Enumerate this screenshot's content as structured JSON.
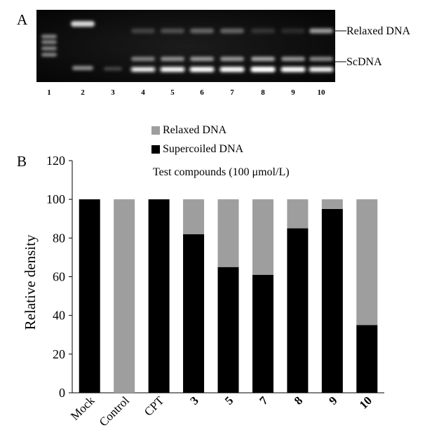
{
  "panel_a": {
    "letter": "A",
    "band_labels": {
      "relaxed": "Relaxed DNA",
      "supercoiled": "ScDNA"
    },
    "lanes": [
      "1",
      "2",
      "3",
      "4",
      "5",
      "6",
      "7",
      "8",
      "9",
      "10"
    ]
  },
  "panel_b": {
    "letter": "B",
    "legend": {
      "relaxed": "Relaxed DNA",
      "supercoiled": "Supercoiled DNA"
    },
    "annotation": "Test compounds (100 μmol/L)"
  },
  "colors": {
    "relaxed": "#9e9e9e",
    "supercoiled": "#000000"
  },
  "chart_data": {
    "type": "bar",
    "stacked": true,
    "categories": [
      "Mock",
      "Control",
      "CPT",
      "3",
      "5",
      "7",
      "8",
      "9",
      "10"
    ],
    "category_bold": [
      false,
      false,
      false,
      true,
      true,
      true,
      true,
      true,
      true
    ],
    "series": [
      {
        "name": "Supercoiled DNA",
        "values": [
          100,
          0,
          100,
          82,
          65,
          61,
          85,
          95,
          35
        ]
      },
      {
        "name": "Relaxed DNA",
        "values": [
          0,
          100,
          0,
          18,
          35,
          39,
          15,
          5,
          65
        ]
      }
    ],
    "ylabel": "Relative density",
    "ylim": [
      0,
      120
    ],
    "yticks": [
      0,
      20,
      40,
      60,
      80,
      100,
      120
    ],
    "legend_position": "top-left",
    "grid": false
  }
}
